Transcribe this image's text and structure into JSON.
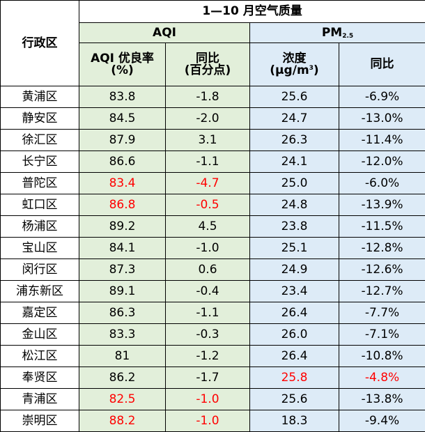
{
  "table": {
    "title": "1—10 月空气质量",
    "district_header": "行政区",
    "aqi_group": "AQI",
    "pm_group_prefix": "PM",
    "pm_group_sub": "2.5",
    "col_aqi_rate_line1": "AQI 优良率",
    "col_aqi_rate_line2": "(%)",
    "col_aqi_change_line1": "同比",
    "col_aqi_change_line2": "(百分点)",
    "col_pm_conc_line1": "浓度",
    "col_pm_conc_line2_prefix": "(μg/m",
    "col_pm_conc_line2_sup": "3",
    "col_pm_conc_line2_suffix": ")",
    "col_pm_change": "同比",
    "rows": [
      {
        "district": "黄浦区",
        "aqi_rate": "83.8",
        "aqi_change": "-1.8",
        "pm_conc": "25.6",
        "pm_change": "-6.9%",
        "red": []
      },
      {
        "district": "静安区",
        "aqi_rate": "84.5",
        "aqi_change": "-2.0",
        "pm_conc": "24.7",
        "pm_change": "-13.0%",
        "red": []
      },
      {
        "district": "徐汇区",
        "aqi_rate": "87.9",
        "aqi_change": "3.1",
        "pm_conc": "26.3",
        "pm_change": "-11.4%",
        "red": []
      },
      {
        "district": "长宁区",
        "aqi_rate": "86.6",
        "aqi_change": "-1.1",
        "pm_conc": "24.1",
        "pm_change": "-12.0%",
        "red": []
      },
      {
        "district": "普陀区",
        "aqi_rate": "83.4",
        "aqi_change": "-4.7",
        "pm_conc": "25.0",
        "pm_change": "-6.0%",
        "red": [
          "aqi_rate",
          "aqi_change"
        ]
      },
      {
        "district": "虹口区",
        "aqi_rate": "86.8",
        "aqi_change": "-0.5",
        "pm_conc": "24.8",
        "pm_change": "-13.9%",
        "red": [
          "aqi_rate",
          "aqi_change"
        ]
      },
      {
        "district": "杨浦区",
        "aqi_rate": "89.2",
        "aqi_change": "4.5",
        "pm_conc": "23.8",
        "pm_change": "-11.5%",
        "red": []
      },
      {
        "district": "宝山区",
        "aqi_rate": "84.1",
        "aqi_change": "-1.0",
        "pm_conc": "25.1",
        "pm_change": "-12.8%",
        "red": []
      },
      {
        "district": "闵行区",
        "aqi_rate": "87.3",
        "aqi_change": "0.6",
        "pm_conc": "24.9",
        "pm_change": "-12.6%",
        "red": []
      },
      {
        "district": "浦东新区",
        "aqi_rate": "89.1",
        "aqi_change": "-0.4",
        "pm_conc": "23.4",
        "pm_change": "-12.7%",
        "red": []
      },
      {
        "district": "嘉定区",
        "aqi_rate": "86.3",
        "aqi_change": "-1.1",
        "pm_conc": "26.4",
        "pm_change": "-7.7%",
        "red": []
      },
      {
        "district": "金山区",
        "aqi_rate": "83.3",
        "aqi_change": "-0.3",
        "pm_conc": "26.0",
        "pm_change": "-7.1%",
        "red": []
      },
      {
        "district": "松江区",
        "aqi_rate": "81",
        "aqi_change": "-1.2",
        "pm_conc": "26.4",
        "pm_change": "-10.8%",
        "red": []
      },
      {
        "district": "奉贤区",
        "aqi_rate": "86.2",
        "aqi_change": "-1.7",
        "pm_conc": "25.8",
        "pm_change": "-4.8%",
        "red": [
          "pm_conc",
          "pm_change"
        ]
      },
      {
        "district": "青浦区",
        "aqi_rate": "82.5",
        "aqi_change": "-1.0",
        "pm_conc": "25.6",
        "pm_change": "-13.8%",
        "red": [
          "aqi_rate",
          "aqi_change"
        ]
      },
      {
        "district": "崇明区",
        "aqi_rate": "88.2",
        "aqi_change": "-1.0",
        "pm_conc": "18.3",
        "pm_change": "-9.4%",
        "red": [
          "aqi_rate",
          "aqi_change"
        ]
      }
    ]
  },
  "colors": {
    "aqi_fill": "#e2efda",
    "pm_fill": "#ddebf7",
    "highlight_text": "#ff0000",
    "border": "#000000"
  }
}
